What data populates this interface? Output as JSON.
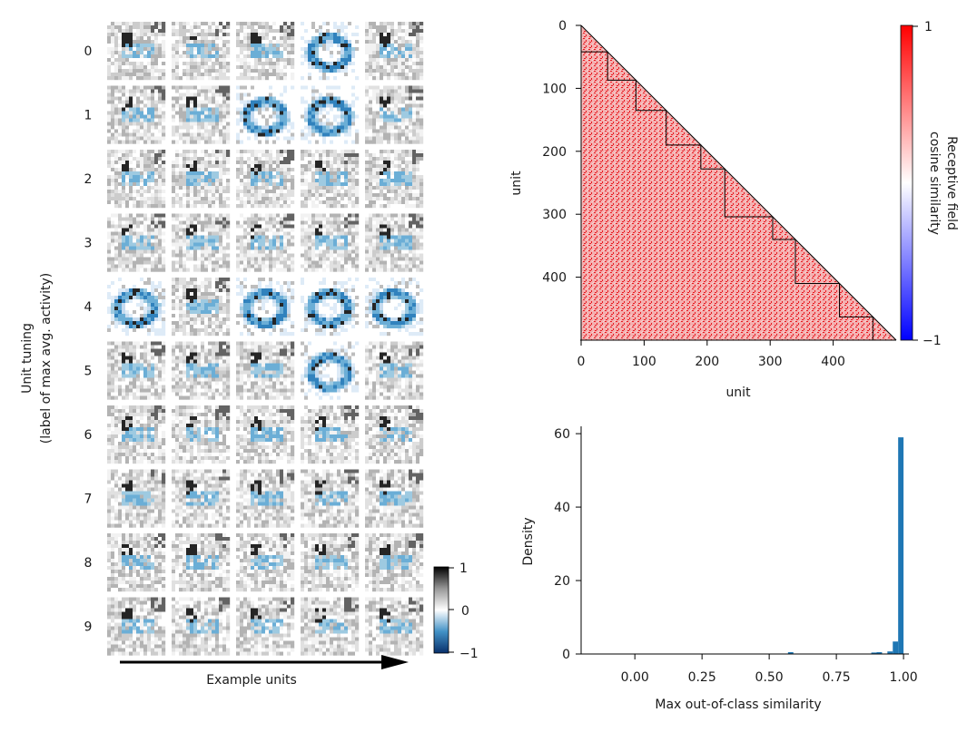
{
  "chart_data": [
    {
      "type": "heatmap",
      "panel": "rf-grid",
      "rows": [
        "0",
        "1",
        "2",
        "3",
        "4",
        "5",
        "6",
        "7",
        "8",
        "9"
      ],
      "n_columns": 5,
      "ylabel_line1": "Unit tuning",
      "ylabel_line2": "(label of max avg. activity)",
      "xlabel": "Example units",
      "colormap": [
        "#08306b",
        "#2171b5",
        "#6baed6",
        "#c6dbef",
        "#ffffff",
        "#d9d9d9",
        "#969696",
        "#525252",
        "#000000"
      ],
      "colorbar": {
        "ticks": [
          "1",
          "0",
          "−1"
        ],
        "range": [
          -1,
          1
        ]
      },
      "distinct_cells": [
        [
          0,
          3
        ],
        [
          1,
          2
        ],
        [
          1,
          3
        ],
        [
          4,
          0
        ],
        [
          4,
          2
        ],
        [
          4,
          3
        ],
        [
          4,
          4
        ],
        [
          5,
          3
        ]
      ]
    },
    {
      "type": "heatmap",
      "panel": "similarity-matrix",
      "xlabel": "unit",
      "ylabel": "unit",
      "xlim": [
        0,
        500
      ],
      "ylim": [
        500,
        0
      ],
      "xticks": [
        "0",
        "100",
        "200",
        "300",
        "400"
      ],
      "yticks": [
        "0",
        "100",
        "200",
        "300",
        "400"
      ],
      "tick_values": [
        0,
        100,
        200,
        300,
        400
      ],
      "lower_triangular": true,
      "class_boundaries": [
        42,
        87,
        135,
        190,
        228,
        304,
        340,
        410,
        463
      ],
      "colorbar": {
        "label_line1": "Receptive field",
        "label_line2": "cosine similarity",
        "ticks": [
          "1",
          "−1"
        ],
        "range": [
          -1,
          1
        ],
        "colors": [
          "#0000ff",
          "#ffffff",
          "#ff0000"
        ]
      },
      "fill_color": "#f4b0b0",
      "dot_color": "#e8181f"
    },
    {
      "type": "bar",
      "panel": "histogram",
      "xlabel": "Max out-of-class similarity",
      "ylabel": "Density",
      "xlim": [
        -0.2,
        1.02
      ],
      "ylim": [
        0,
        62
      ],
      "xticks": [
        "0.00",
        "0.25",
        "0.50",
        "0.75",
        "1.00"
      ],
      "xtick_values": [
        0,
        0.25,
        0.5,
        0.75,
        1.0
      ],
      "yticks": [
        "0",
        "20",
        "40",
        "60"
      ],
      "ytick_values": [
        0,
        20,
        40,
        60
      ],
      "bar_color": "#1f77b4",
      "bins": [
        {
          "x0": 0.57,
          "x1": 0.59,
          "density": 0.5
        },
        {
          "x0": 0.88,
          "x1": 0.9,
          "density": 0.4
        },
        {
          "x0": 0.9,
          "x1": 0.92,
          "density": 0.5
        },
        {
          "x0": 0.94,
          "x1": 0.96,
          "density": 0.7
        },
        {
          "x0": 0.96,
          "x1": 0.98,
          "density": 3.4
        },
        {
          "x0": 0.98,
          "x1": 1.0,
          "density": 59.0
        }
      ]
    }
  ]
}
